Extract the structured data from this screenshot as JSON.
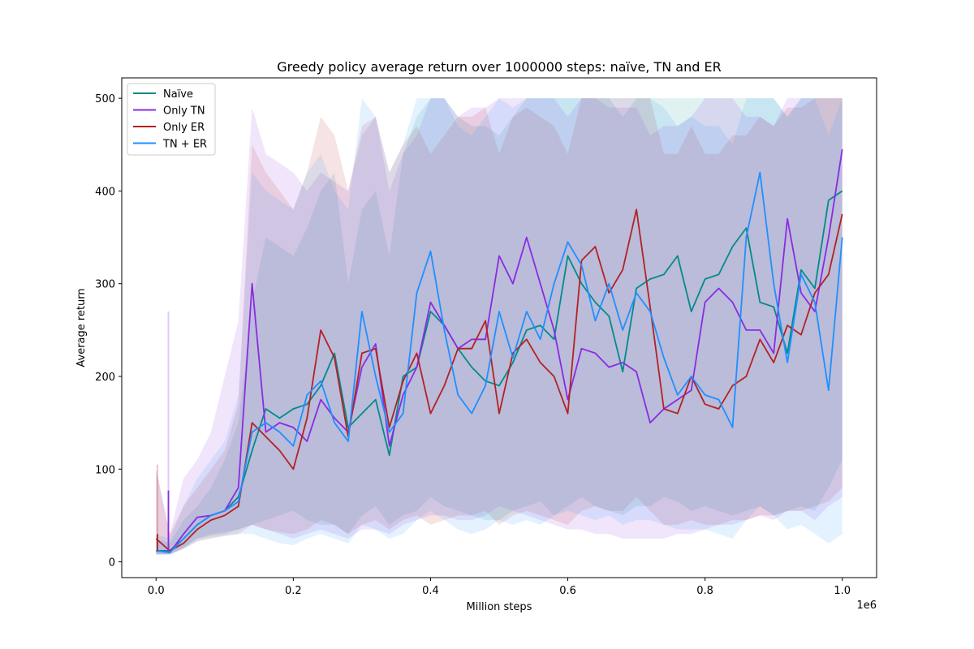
{
  "chart_data": {
    "type": "line",
    "title": "Greedy policy average return over 1000000 steps: naïve, TN and ER",
    "xlabel": "Million steps",
    "ylabel": "Average return",
    "x_offset_label": "1e6",
    "xlim": [
      -0.05,
      1.05
    ],
    "ylim": [
      -17,
      522
    ],
    "x_ticks": [
      0.0,
      0.2,
      0.4,
      0.6,
      0.8,
      1.0
    ],
    "x_tick_labels": [
      "0.0",
      "0.2",
      "0.4",
      "0.6",
      "0.8",
      "1.0"
    ],
    "y_ticks": [
      0,
      100,
      200,
      300,
      400,
      500
    ],
    "y_tick_labels": [
      "0",
      "100",
      "200",
      "300",
      "400",
      "500"
    ],
    "legend_position": "top-left",
    "band": "shaded spread around each mean, clipped at 500",
    "x": [
      0.0,
      0.02,
      0.04,
      0.06,
      0.08,
      0.1,
      0.12,
      0.14,
      0.16,
      0.18,
      0.2,
      0.22,
      0.24,
      0.26,
      0.28,
      0.3,
      0.32,
      0.34,
      0.36,
      0.38,
      0.4,
      0.42,
      0.44,
      0.46,
      0.48,
      0.5,
      0.52,
      0.54,
      0.56,
      0.58,
      0.6,
      0.62,
      0.64,
      0.66,
      0.68,
      0.7,
      0.72,
      0.74,
      0.76,
      0.78,
      0.8,
      0.82,
      0.84,
      0.86,
      0.88,
      0.9,
      0.92,
      0.94,
      0.96,
      0.98,
      1.0
    ],
    "series": [
      {
        "name": "Naïve",
        "color": "#008b8b",
        "values": [
          12,
          12,
          25,
          40,
          50,
          55,
          70,
          120,
          165,
          155,
          165,
          170,
          190,
          225,
          145,
          160,
          175,
          115,
          200,
          210,
          270,
          255,
          230,
          210,
          195,
          190,
          215,
          250,
          255,
          240,
          330,
          300,
          280,
          265,
          205,
          295,
          305,
          310,
          330,
          270,
          305,
          310,
          340,
          360,
          280,
          275,
          225,
          315,
          295,
          390,
          400
        ],
        "lower": [
          8,
          8,
          15,
          25,
          28,
          30,
          35,
          40,
          45,
          50,
          55,
          45,
          40,
          40,
          30,
          50,
          60,
          40,
          50,
          55,
          70,
          60,
          55,
          50,
          45,
          45,
          55,
          60,
          65,
          50,
          60,
          70,
          60,
          55,
          50,
          60,
          60,
          70,
          65,
          55,
          60,
          55,
          50,
          55,
          60,
          50,
          55,
          60,
          55,
          80,
          110
        ],
        "upper": [
          25,
          20,
          45,
          60,
          80,
          110,
          150,
          280,
          350,
          340,
          330,
          360,
          400,
          420,
          300,
          380,
          400,
          330,
          440,
          480,
          500,
          500,
          480,
          470,
          470,
          460,
          480,
          500,
          500,
          500,
          500,
          500,
          500,
          500,
          480,
          500,
          500,
          500,
          500,
          500,
          500,
          500,
          500,
          500,
          500,
          500,
          480,
          500,
          500,
          500,
          500
        ]
      },
      {
        "name": "Only TN",
        "color": "#8a2be2",
        "values": [
          12,
          10,
          30,
          48,
          50,
          55,
          80,
          300,
          140,
          150,
          145,
          130,
          175,
          155,
          140,
          210,
          235,
          125,
          180,
          210,
          280,
          255,
          230,
          240,
          240,
          330,
          300,
          350,
          300,
          250,
          175,
          230,
          225,
          210,
          215,
          205,
          150,
          165,
          175,
          185,
          280,
          295,
          280,
          250,
          250,
          225,
          370,
          290,
          270,
          350,
          445
        ],
        "lower": [
          8,
          8,
          15,
          25,
          30,
          32,
          35,
          40,
          35,
          30,
          25,
          30,
          35,
          30,
          25,
          35,
          35,
          30,
          40,
          45,
          50,
          50,
          45,
          45,
          50,
          60,
          55,
          50,
          45,
          40,
          35,
          35,
          30,
          30,
          25,
          25,
          25,
          25,
          30,
          30,
          35,
          40,
          40,
          45,
          50,
          45,
          55,
          55,
          45,
          60,
          70
        ],
        "upper": [
          100,
          30,
          90,
          110,
          140,
          200,
          260,
          490,
          440,
          430,
          420,
          400,
          420,
          410,
          400,
          460,
          480,
          400,
          440,
          460,
          500,
          500,
          480,
          490,
          490,
          500,
          500,
          500,
          500,
          500,
          480,
          500,
          500,
          490,
          490,
          490,
          460,
          470,
          470,
          480,
          500,
          500,
          500,
          480,
          480,
          470,
          500,
          500,
          500,
          500,
          500
        ]
      },
      {
        "name": "Only ER",
        "color": "#b22222",
        "values": [
          25,
          12,
          20,
          35,
          45,
          50,
          60,
          150,
          135,
          120,
          100,
          155,
          250,
          220,
          135,
          225,
          230,
          145,
          195,
          225,
          160,
          190,
          230,
          230,
          260,
          160,
          225,
          240,
          215,
          200,
          160,
          325,
          340,
          290,
          315,
          380,
          275,
          165,
          160,
          200,
          170,
          165,
          190,
          200,
          240,
          215,
          255,
          245,
          290,
          310,
          375
        ],
        "lower": [
          8,
          8,
          14,
          22,
          25,
          28,
          30,
          40,
          35,
          32,
          30,
          35,
          45,
          40,
          30,
          40,
          45,
          35,
          45,
          50,
          40,
          45,
          50,
          50,
          55,
          40,
          50,
          55,
          50,
          45,
          40,
          55,
          60,
          55,
          55,
          70,
          55,
          40,
          40,
          45,
          40,
          40,
          45,
          45,
          50,
          50,
          55,
          55,
          60,
          65,
          80
        ],
        "upper": [
          100,
          30,
          60,
          80,
          100,
          120,
          170,
          450,
          420,
          400,
          380,
          420,
          480,
          460,
          400,
          470,
          480,
          420,
          450,
          470,
          440,
          460,
          480,
          480,
          490,
          440,
          480,
          490,
          480,
          470,
          440,
          500,
          500,
          500,
          500,
          500,
          500,
          440,
          440,
          470,
          440,
          440,
          460,
          460,
          480,
          470,
          490,
          490,
          500,
          500,
          500
        ]
      },
      {
        "name": "TN + ER",
        "color": "#1e90ff",
        "values": [
          12,
          10,
          25,
          40,
          50,
          55,
          65,
          140,
          150,
          140,
          125,
          180,
          195,
          150,
          130,
          270,
          200,
          140,
          160,
          290,
          335,
          250,
          180,
          160,
          190,
          270,
          220,
          270,
          240,
          300,
          345,
          320,
          260,
          300,
          250,
          290,
          270,
          220,
          180,
          200,
          180,
          175,
          145,
          350,
          420,
          300,
          215,
          310,
          280,
          185,
          350
        ],
        "lower": [
          8,
          8,
          14,
          22,
          26,
          28,
          30,
          30,
          25,
          20,
          18,
          25,
          30,
          25,
          20,
          40,
          35,
          25,
          30,
          45,
          55,
          45,
          35,
          30,
          35,
          45,
          40,
          45,
          40,
          50,
          55,
          50,
          45,
          50,
          40,
          45,
          45,
          40,
          35,
          35,
          35,
          30,
          25,
          45,
          60,
          50,
          35,
          40,
          30,
          20,
          30
        ],
        "upper": [
          30,
          25,
          60,
          90,
          110,
          130,
          180,
          420,
          400,
          390,
          380,
          420,
          440,
          400,
          380,
          500,
          480,
          420,
          450,
          500,
          500,
          500,
          470,
          460,
          480,
          500,
          490,
          500,
          500,
          500,
          500,
          500,
          500,
          500,
          500,
          500,
          500,
          490,
          470,
          480,
          470,
          470,
          450,
          500,
          500,
          500,
          480,
          500,
          500,
          460,
          500
        ]
      }
    ],
    "spikes": [
      {
        "series": "Only TN",
        "x": 0.018,
        "value": 77,
        "upper": 270
      },
      {
        "series": "Only ER",
        "x": 0.002,
        "value": 30,
        "upper": 105
      }
    ]
  }
}
